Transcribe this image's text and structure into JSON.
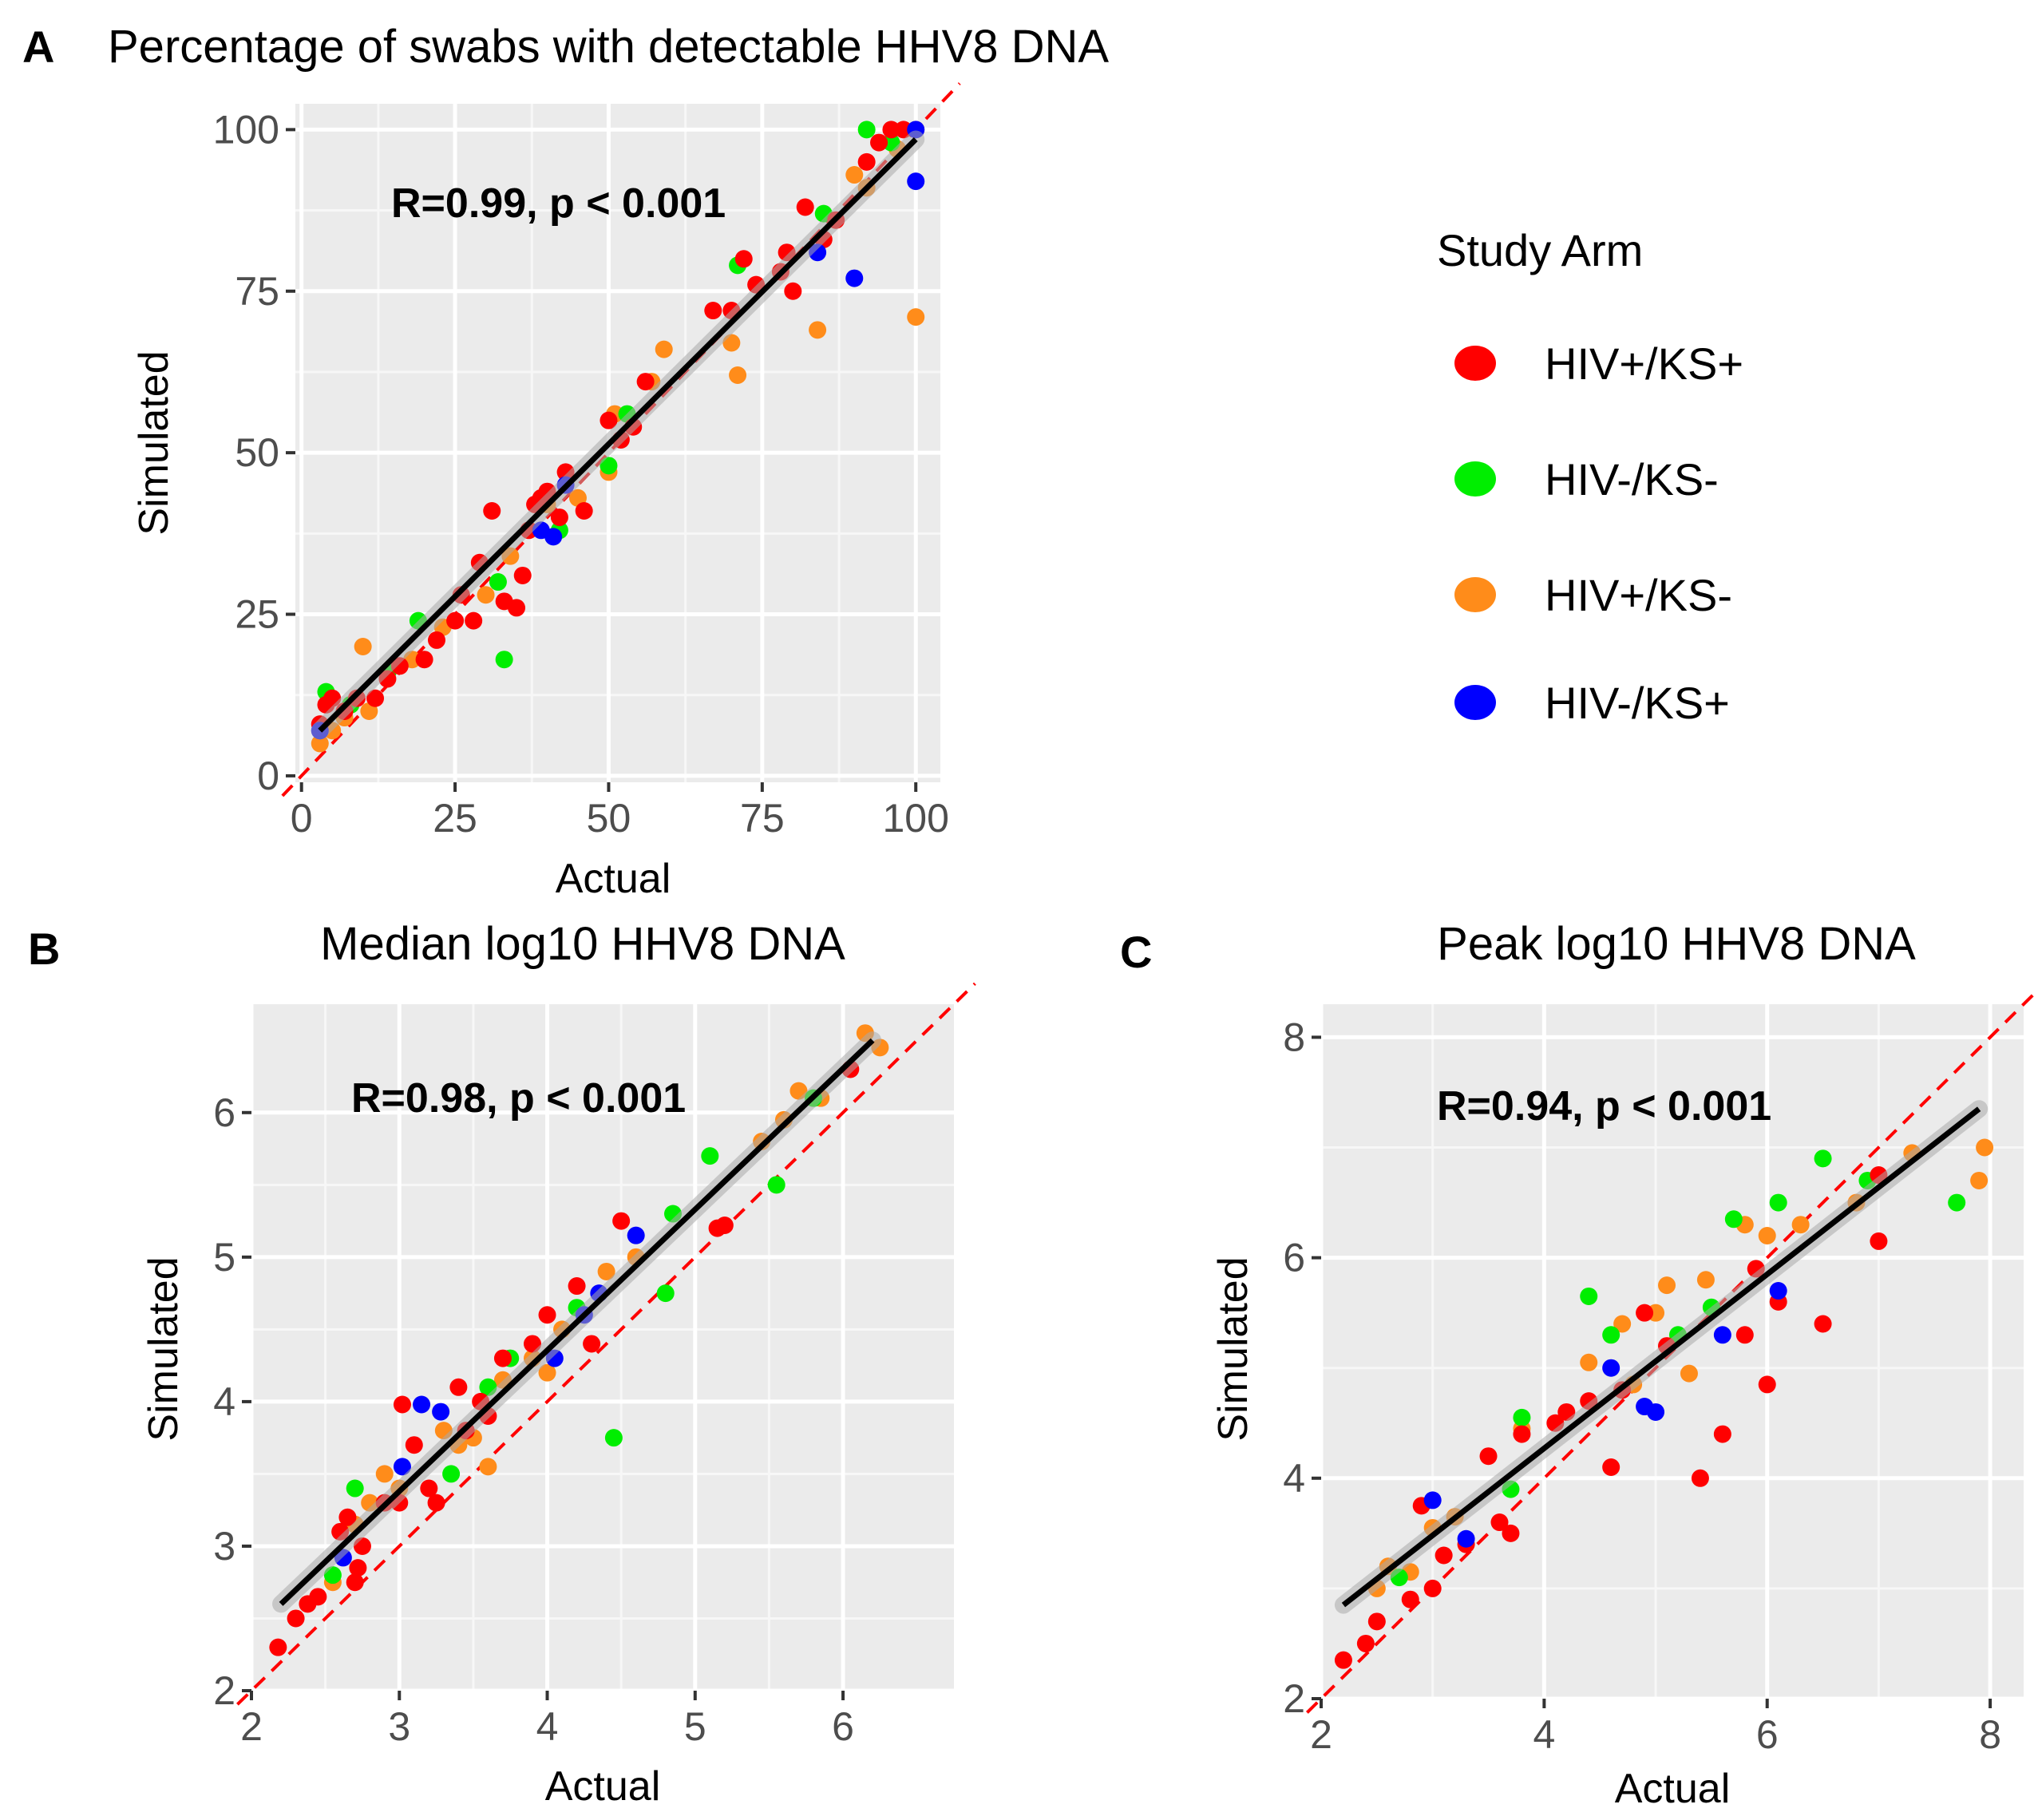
{
  "legend": {
    "title": "Study Arm",
    "items": [
      {
        "label": "HIV+/KS+",
        "color": "#FF0000"
      },
      {
        "label": "HIV-/KS-",
        "color": "#00EE00"
      },
      {
        "label": "HIV+/KS-",
        "color": "#FF8C1A"
      },
      {
        "label": "HIV-/KS+",
        "color": "#0000FF"
      }
    ]
  },
  "chart_data": [
    {
      "panel": "A",
      "type": "scatter",
      "title": "Percentage of swabs with detectable HHV8 DNA",
      "xlabel": "Actual",
      "ylabel": "Simulated",
      "xlim": [
        -1,
        104
      ],
      "ylim": [
        -1,
        104
      ],
      "xticks": [
        0,
        25,
        50,
        75,
        100
      ],
      "yticks": [
        0,
        25,
        50,
        75,
        100
      ],
      "annotation": "R=0.99, p < 0.001",
      "fit": {
        "x": [
          3,
          100
        ],
        "y": [
          7,
          98.5
        ]
      },
      "identity": true,
      "series": [
        {
          "name": "HIV+/KS+",
          "points": [
            [
              3,
              8
            ],
            [
              4,
              11
            ],
            [
              5,
              12
            ],
            [
              7,
              10
            ],
            [
              9,
              12
            ],
            [
              12,
              12
            ],
            [
              14,
              15
            ],
            [
              16,
              17
            ],
            [
              20,
              18
            ],
            [
              22,
              21
            ],
            [
              25,
              24
            ],
            [
              26,
              28
            ],
            [
              28,
              24
            ],
            [
              29,
              33
            ],
            [
              31,
              41
            ],
            [
              33,
              27
            ],
            [
              35,
              26
            ],
            [
              36,
              31
            ],
            [
              37,
              38
            ],
            [
              38,
              42
            ],
            [
              39,
              43
            ],
            [
              40,
              44
            ],
            [
              42,
              40
            ],
            [
              43,
              47
            ],
            [
              46,
              41
            ],
            [
              50,
              55
            ],
            [
              52,
              52
            ],
            [
              54,
              54
            ],
            [
              56,
              61
            ],
            [
              67,
              72
            ],
            [
              70,
              72
            ],
            [
              72,
              80
            ],
            [
              74,
              76
            ],
            [
              78,
              78
            ],
            [
              79,
              81
            ],
            [
              80,
              75
            ],
            [
              82,
              88
            ],
            [
              85,
              83
            ],
            [
              87,
              86
            ],
            [
              92,
              95
            ],
            [
              94,
              98
            ],
            [
              96,
              100
            ],
            [
              98,
              100
            ]
          ]
        },
        {
          "name": "HIV-/KS-",
          "points": [
            [
              4,
              13
            ],
            [
              8,
              11
            ],
            [
              14,
              16
            ],
            [
              19,
              24
            ],
            [
              32,
              30
            ],
            [
              33,
              18
            ],
            [
              42,
              38
            ],
            [
              50,
              48
            ],
            [
              53,
              56
            ],
            [
              71,
              79
            ],
            [
              85,
              87
            ],
            [
              92,
              100
            ],
            [
              96,
              98
            ]
          ]
        },
        {
          "name": "HIV+/KS-",
          "points": [
            [
              3,
              5
            ],
            [
              5,
              7
            ],
            [
              7,
              9
            ],
            [
              8,
              11
            ],
            [
              10,
              20
            ],
            [
              11,
              10
            ],
            [
              18,
              18
            ],
            [
              23,
              23
            ],
            [
              30,
              28
            ],
            [
              34,
              34
            ],
            [
              40,
              42
            ],
            [
              45,
              43
            ],
            [
              50,
              47
            ],
            [
              51,
              56
            ],
            [
              57,
              61
            ],
            [
              59,
              66
            ],
            [
              70,
              67
            ],
            [
              71,
              62
            ],
            [
              84,
              69
            ],
            [
              90,
              93
            ],
            [
              92,
              91
            ],
            [
              97,
              97
            ],
            [
              100,
              71
            ],
            [
              100,
              100
            ]
          ]
        },
        {
          "name": "HIV-/KS+",
          "points": [
            [
              3,
              7
            ],
            [
              39,
              38
            ],
            [
              41,
              37
            ],
            [
              43,
              45
            ],
            [
              84,
              81
            ],
            [
              90,
              77
            ],
            [
              100,
              92
            ],
            [
              100,
              100
            ]
          ]
        }
      ]
    },
    {
      "panel": "B",
      "type": "scatter",
      "title": "Median log10 HHV8 DNA",
      "xlabel": "Actual",
      "ylabel": "Simulated",
      "xlim": [
        2,
        6.75
      ],
      "ylim": [
        2,
        6.75
      ],
      "xticks": [
        2,
        3,
        4,
        5,
        6
      ],
      "yticks": [
        2,
        3,
        4,
        5,
        6
      ],
      "annotation": "R=0.98, p < 0.001",
      "fit": {
        "x": [
          2.2,
          6.2
        ],
        "y": [
          2.6,
          6.5
        ]
      },
      "identity": true,
      "series": [
        {
          "name": "HIV+/KS+",
          "points": [
            [
              2.18,
              2.3
            ],
            [
              2.3,
              2.5
            ],
            [
              2.38,
              2.6
            ],
            [
              2.45,
              2.65
            ],
            [
              2.6,
              3.1
            ],
            [
              2.65,
              3.2
            ],
            [
              2.7,
              2.75
            ],
            [
              2.72,
              2.85
            ],
            [
              2.75,
              3.0
            ],
            [
              2.9,
              3.3
            ],
            [
              3.0,
              3.3
            ],
            [
              3.02,
              3.98
            ],
            [
              3.1,
              3.7
            ],
            [
              3.2,
              3.4
            ],
            [
              3.25,
              3.3
            ],
            [
              3.4,
              4.1
            ],
            [
              3.45,
              3.8
            ],
            [
              3.55,
              4.0
            ],
            [
              3.6,
              3.9
            ],
            [
              3.7,
              4.3
            ],
            [
              3.9,
              4.4
            ],
            [
              4.0,
              4.6
            ],
            [
              4.2,
              4.8
            ],
            [
              4.3,
              4.4
            ],
            [
              4.5,
              5.25
            ],
            [
              5.15,
              5.2
            ],
            [
              5.2,
              5.22
            ],
            [
              6.05,
              6.3
            ]
          ]
        },
        {
          "name": "HIV-/KS-",
          "points": [
            [
              2.55,
              2.8
            ],
            [
              2.7,
              3.4
            ],
            [
              3.35,
              3.5
            ],
            [
              3.6,
              4.1
            ],
            [
              3.75,
              4.3
            ],
            [
              4.2,
              4.65
            ],
            [
              4.45,
              3.75
            ],
            [
              4.8,
              4.75
            ],
            [
              4.85,
              5.3
            ],
            [
              5.1,
              5.7
            ],
            [
              5.55,
              5.5
            ],
            [
              5.8,
              6.1
            ]
          ]
        },
        {
          "name": "HIV+/KS-",
          "points": [
            [
              2.55,
              2.75
            ],
            [
              2.7,
              3.15
            ],
            [
              2.8,
              3.3
            ],
            [
              2.9,
              3.5
            ],
            [
              3.0,
              3.4
            ],
            [
              3.3,
              3.8
            ],
            [
              3.4,
              3.7
            ],
            [
              3.5,
              3.75
            ],
            [
              3.6,
              3.55
            ],
            [
              3.7,
              4.15
            ],
            [
              3.9,
              4.3
            ],
            [
              4.0,
              4.2
            ],
            [
              4.1,
              4.5
            ],
            [
              4.4,
              4.9
            ],
            [
              4.6,
              5.0
            ],
            [
              5.45,
              5.8
            ],
            [
              5.6,
              5.95
            ],
            [
              5.7,
              6.15
            ],
            [
              5.85,
              6.1
            ],
            [
              6.15,
              6.55
            ],
            [
              6.25,
              6.45
            ]
          ]
        },
        {
          "name": "HIV-/KS+",
          "points": [
            [
              2.62,
              2.92
            ],
            [
              3.02,
              3.55
            ],
            [
              3.15,
              3.98
            ],
            [
              3.28,
              3.93
            ],
            [
              4.05,
              4.3
            ],
            [
              4.25,
              4.6
            ],
            [
              4.35,
              4.75
            ],
            [
              4.6,
              5.15
            ]
          ]
        }
      ]
    },
    {
      "panel": "C",
      "type": "scatter",
      "title": "Peak log10 HHV8 DNA",
      "xlabel": "Actual",
      "ylabel": "Simulated",
      "xlim": [
        2,
        8.3
      ],
      "ylim": [
        2,
        8.3
      ],
      "xticks": [
        2,
        4,
        6,
        8
      ],
      "yticks": [
        2,
        4,
        6,
        8
      ],
      "annotation": "R=0.94, p < 0.001",
      "fit": {
        "x": [
          2.2,
          7.9
        ],
        "y": [
          2.85,
          7.35
        ]
      },
      "identity": true,
      "series": [
        {
          "name": "HIV+/KS+",
          "points": [
            [
              2.2,
              2.35
            ],
            [
              2.4,
              2.5
            ],
            [
              2.5,
              2.7
            ],
            [
              2.8,
              2.9
            ],
            [
              2.9,
              3.75
            ],
            [
              3.0,
              3.0
            ],
            [
              3.1,
              3.3
            ],
            [
              3.3,
              3.4
            ],
            [
              3.5,
              4.2
            ],
            [
              3.6,
              3.6
            ],
            [
              3.7,
              3.5
            ],
            [
              3.8,
              4.4
            ],
            [
              4.1,
              4.5
            ],
            [
              4.2,
              4.6
            ],
            [
              4.4,
              4.7
            ],
            [
              4.6,
              4.1
            ],
            [
              4.7,
              4.8
            ],
            [
              4.9,
              5.5
            ],
            [
              5.1,
              5.2
            ],
            [
              5.4,
              4.0
            ],
            [
              5.6,
              4.4
            ],
            [
              5.8,
              5.3
            ],
            [
              5.9,
              5.9
            ],
            [
              6.0,
              4.85
            ],
            [
              6.1,
              5.6
            ],
            [
              6.5,
              5.4
            ],
            [
              7.0,
              6.15
            ],
            [
              7.0,
              6.75
            ]
          ]
        },
        {
          "name": "HIV-/KS-",
          "points": [
            [
              2.7,
              3.1
            ],
            [
              3.7,
              3.9
            ],
            [
              3.8,
              4.55
            ],
            [
              4.4,
              5.65
            ],
            [
              4.6,
              5.3
            ],
            [
              5.2,
              5.3
            ],
            [
              5.5,
              5.55
            ],
            [
              5.7,
              6.35
            ],
            [
              6.1,
              6.5
            ],
            [
              6.5,
              6.9
            ],
            [
              6.9,
              6.7
            ],
            [
              7.7,
              6.5
            ]
          ]
        },
        {
          "name": "HIV+/KS-",
          "points": [
            [
              2.5,
              3.0
            ],
            [
              2.6,
              3.2
            ],
            [
              2.8,
              3.15
            ],
            [
              3.0,
              3.55
            ],
            [
              3.2,
              3.65
            ],
            [
              3.8,
              4.45
            ],
            [
              4.4,
              5.05
            ],
            [
              4.7,
              5.4
            ],
            [
              4.8,
              4.85
            ],
            [
              5.0,
              5.5
            ],
            [
              5.1,
              5.75
            ],
            [
              5.3,
              4.95
            ],
            [
              5.45,
              5.8
            ],
            [
              5.8,
              6.3
            ],
            [
              6.0,
              6.2
            ],
            [
              6.3,
              6.3
            ],
            [
              6.8,
              6.5
            ],
            [
              7.3,
              6.95
            ],
            [
              7.9,
              6.7
            ],
            [
              7.95,
              7.0
            ]
          ]
        },
        {
          "name": "HIV-/KS+",
          "points": [
            [
              3.0,
              3.8
            ],
            [
              3.3,
              3.45
            ],
            [
              4.6,
              5.0
            ],
            [
              4.9,
              4.65
            ],
            [
              5.0,
              4.6
            ],
            [
              5.6,
              5.3
            ],
            [
              6.1,
              5.7
            ]
          ]
        }
      ]
    }
  ],
  "panels": [
    {
      "letter": "A"
    },
    {
      "letter": "B"
    },
    {
      "letter": "C"
    }
  ]
}
